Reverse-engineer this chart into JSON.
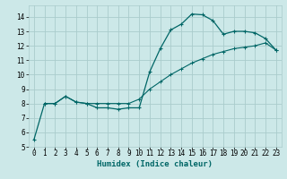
{
  "xlabel": "Humidex (Indice chaleur)",
  "bg_color": "#cce8e8",
  "grid_color": "#aacccc",
  "line_color": "#006666",
  "xlim": [
    -0.5,
    23.5
  ],
  "ylim": [
    5,
    14.8
  ],
  "xtick_labels": [
    "0",
    "1",
    "2",
    "3",
    "4",
    "5",
    "6",
    "7",
    "8",
    "9",
    "10",
    "11",
    "12",
    "13",
    "14",
    "15",
    "16",
    "17",
    "18",
    "19",
    "20",
    "21",
    "22",
    "23"
  ],
  "xticks": [
    0,
    1,
    2,
    3,
    4,
    5,
    6,
    7,
    8,
    9,
    10,
    11,
    12,
    13,
    14,
    15,
    16,
    17,
    18,
    19,
    20,
    21,
    22,
    23
  ],
  "yticks": [
    5,
    6,
    7,
    8,
    9,
    10,
    11,
    12,
    13,
    14
  ],
  "curve1_x": [
    0,
    1,
    2,
    3,
    4,
    5,
    6,
    7,
    8,
    9,
    10,
    11,
    12,
    13,
    14,
    15,
    16,
    17,
    18,
    19,
    20,
    21,
    22,
    23
  ],
  "curve1_y": [
    5.5,
    8.0,
    8.0,
    8.5,
    8.1,
    8.0,
    7.7,
    7.7,
    7.6,
    7.7,
    7.7,
    10.2,
    11.8,
    13.1,
    13.5,
    14.2,
    14.15,
    13.75,
    12.8,
    13.0,
    13.0,
    12.9,
    12.5,
    11.7
  ],
  "curve2_x": [
    1,
    2,
    3,
    4,
    5,
    6,
    7,
    8,
    9,
    10,
    11,
    12,
    13,
    14,
    15,
    16,
    17,
    18,
    19,
    20,
    21,
    22,
    23
  ],
  "curve2_y": [
    8.0,
    8.0,
    8.5,
    8.1,
    8.0,
    8.0,
    8.0,
    8.0,
    8.0,
    8.3,
    9.0,
    9.5,
    10.0,
    10.4,
    10.8,
    11.1,
    11.4,
    11.6,
    11.8,
    11.9,
    12.0,
    12.2,
    11.7
  ]
}
